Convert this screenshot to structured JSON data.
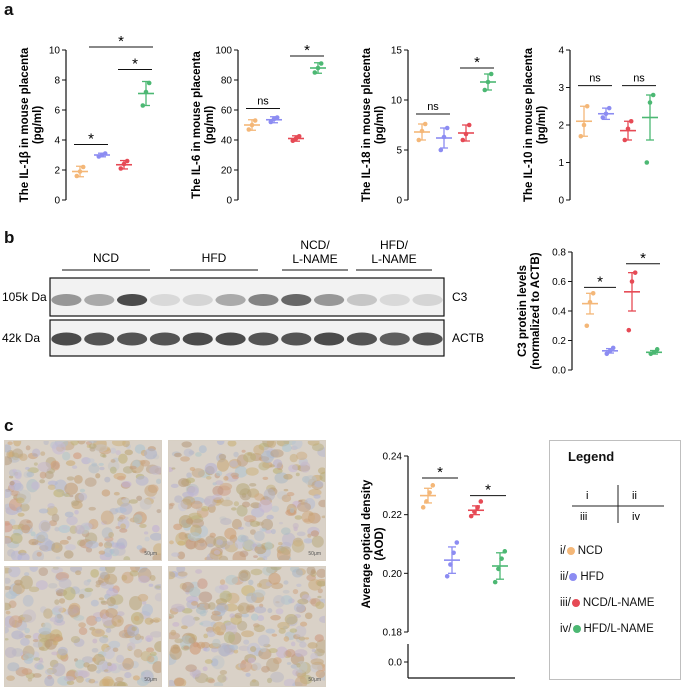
{
  "panels": {
    "a": "a",
    "b": "b",
    "c": "c"
  },
  "colors": {
    "ncd": "#f4b778",
    "hfd": "#8c8cf2",
    "ncd_lname": "#e64a55",
    "hfd_lname": "#4cb873"
  },
  "chart_data": [
    {
      "type": "scatter",
      "ylabel_lines": [
        "The IL-1β in mouse placenta",
        "(pg/ml)"
      ],
      "ylim": [
        0,
        10
      ],
      "yticks": [
        "0",
        "2",
        "4",
        "6",
        "8",
        "10"
      ],
      "groups": [
        {
          "mean": 1.9,
          "sem": 0.35,
          "points": [
            1.6,
            1.9,
            2.2
          ]
        },
        {
          "mean": 3.0,
          "sem": 0.12,
          "points": [
            2.9,
            3.0,
            3.1
          ]
        },
        {
          "mean": 2.35,
          "sem": 0.28,
          "points": [
            2.1,
            2.4,
            2.6
          ]
        },
        {
          "mean": 7.1,
          "sem": 0.8,
          "points": [
            6.3,
            7.2,
            7.8
          ]
        }
      ],
      "annotations": [
        "*",
        "*",
        "*"
      ]
    },
    {
      "type": "scatter",
      "ylabel_lines": [
        "The IL-6 in mouse placenta",
        "(pg/ml)"
      ],
      "ylim": [
        0,
        100
      ],
      "yticks": [
        "0",
        "20",
        "40",
        "60",
        "80",
        "100"
      ],
      "groups": [
        {
          "mean": 50,
          "sem": 3.5,
          "points": [
            47,
            50,
            53
          ]
        },
        {
          "mean": 53.5,
          "sem": 2,
          "points": [
            52,
            54,
            55
          ]
        },
        {
          "mean": 41,
          "sem": 1.8,
          "points": [
            39.5,
            41,
            42.5
          ]
        },
        {
          "mean": 88,
          "sem": 3.5,
          "points": [
            85,
            88,
            91
          ]
        }
      ],
      "annotations": [
        "ns",
        "*"
      ]
    },
    {
      "type": "scatter",
      "ylabel_lines": [
        "The IL-18 in mouse placenta",
        "(pg/ml)"
      ],
      "ylim": [
        0,
        15
      ],
      "yticks": [
        "0",
        "5",
        "10",
        "15"
      ],
      "groups": [
        {
          "mean": 6.8,
          "sem": 0.8,
          "points": [
            6.0,
            6.9,
            7.6
          ]
        },
        {
          "mean": 6.2,
          "sem": 1.0,
          "points": [
            5.0,
            6.3,
            7.2
          ]
        },
        {
          "mean": 6.7,
          "sem": 0.8,
          "points": [
            6.0,
            6.6,
            7.5
          ]
        },
        {
          "mean": 11.8,
          "sem": 0.8,
          "points": [
            11.0,
            11.8,
            12.6
          ]
        }
      ],
      "annotations": [
        "ns",
        "*"
      ]
    },
    {
      "type": "scatter",
      "ylabel_lines": [
        "The IL-10 in mouse placenta",
        "(pg/ml)"
      ],
      "ylim": [
        0,
        4
      ],
      "yticks": [
        "0",
        "1",
        "2",
        "3",
        "4"
      ],
      "groups": [
        {
          "mean": 2.1,
          "sem": 0.4,
          "points": [
            1.7,
            2.0,
            2.5
          ]
        },
        {
          "mean": 2.3,
          "sem": 0.15,
          "points": [
            2.2,
            2.3,
            2.45
          ]
        },
        {
          "mean": 1.85,
          "sem": 0.25,
          "points": [
            1.6,
            1.9,
            2.1
          ]
        },
        {
          "mean": 2.2,
          "sem": 0.6,
          "points": [
            1.0,
            2.6,
            2.8
          ]
        }
      ],
      "annotations": [
        "ns",
        "ns"
      ]
    },
    {
      "type": "scatter",
      "ylabel_lines": [
        "C3 protein levels",
        "(normalized to ACTB)"
      ],
      "ylim": [
        0,
        0.8
      ],
      "yticks": [
        "0.0",
        "0.2",
        "0.4",
        "0.6",
        "0.8"
      ],
      "groups": [
        {
          "mean": 0.45,
          "sem": 0.07,
          "points": [
            0.3,
            0.46,
            0.52
          ]
        },
        {
          "mean": 0.13,
          "sem": 0.015,
          "points": [
            0.11,
            0.13,
            0.15
          ]
        },
        {
          "mean": 0.53,
          "sem": 0.13,
          "points": [
            0.27,
            0.6,
            0.66
          ]
        },
        {
          "mean": 0.12,
          "sem": 0.012,
          "points": [
            0.11,
            0.12,
            0.14
          ]
        }
      ],
      "annotations": [
        "*",
        "*"
      ]
    },
    {
      "type": "scatter",
      "ylabel_lines": [
        "Average optical density",
        "(AOD)"
      ],
      "ylim": [
        0.18,
        0.24
      ],
      "yticks": [
        "0.18",
        "0.20",
        "0.22",
        "0.24"
      ],
      "extra_tick": "0.0",
      "groups": [
        {
          "mean": 0.2265,
          "sem": 0.0025,
          "points": [
            0.2225,
            0.2245,
            0.2275,
            0.23
          ]
        },
        {
          "mean": 0.2045,
          "sem": 0.0045,
          "points": [
            0.199,
            0.203,
            0.207,
            0.2105
          ]
        },
        {
          "mean": 0.2215,
          "sem": 0.0015,
          "points": [
            0.2195,
            0.221,
            0.2225,
            0.2245
          ]
        },
        {
          "mean": 0.2025,
          "sem": 0.0045,
          "points": [
            0.197,
            0.2015,
            0.205,
            0.2075
          ]
        }
      ],
      "annotations": [
        "*",
        "*"
      ]
    }
  ],
  "blot": {
    "groups": [
      "NCD",
      "HFD",
      "NCD/\nL-NAME",
      "HFD/\nL-NAME"
    ],
    "rows": [
      {
        "size": "105k Da",
        "protein": "C3"
      },
      {
        "size": "42k Da",
        "protein": "ACTB"
      }
    ],
    "c3_intensity": [
      0.45,
      0.35,
      0.85,
      0.1,
      0.12,
      0.35,
      0.55,
      0.7,
      0.45,
      0.2,
      0.1,
      0.12
    ],
    "actb_intensity": [
      0.85,
      0.8,
      0.8,
      0.8,
      0.85,
      0.85,
      0.8,
      0.8,
      0.85,
      0.8,
      0.75,
      0.8
    ]
  },
  "legend": {
    "title": "Legend",
    "quadrants": [
      "i",
      "ii",
      "iii",
      "iv"
    ],
    "items": [
      {
        "prefix": "i/",
        "label": "NCD",
        "color": "#f4b778"
      },
      {
        "prefix": "ii/",
        "label": "HFD",
        "color": "#8c8cf2"
      },
      {
        "prefix": "iii/",
        "label": "NCD/L-NAME",
        "color": "#e64a55"
      },
      {
        "prefix": "iv/",
        "label": "HFD/L-NAME",
        "color": "#4cb873"
      }
    ]
  },
  "micrographs": [
    {
      "quadrant": "i",
      "scale": "50μm"
    },
    {
      "quadrant": "ii",
      "scale": "50μm"
    },
    {
      "quadrant": "iii",
      "scale": "50μm"
    },
    {
      "quadrant": "iv",
      "scale": "50μm"
    }
  ]
}
